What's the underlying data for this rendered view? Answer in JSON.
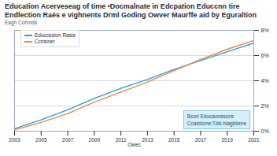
{
  "chart_data": {
    "type": "line",
    "title": "Education Acerveseag of time •Docmalnate in Edcpation Educcnn tire\nEndlection Raés e vighnents Drml Goding Owver Maurffe aid by Eguraltion",
    "subtitle": "Eagh Coñmds",
    "x_label": "Owec",
    "x": [
      2003,
      2005,
      2007,
      2009,
      2011,
      2013,
      2015,
      2017,
      2019,
      2021
    ],
    "series": [
      {
        "name": "Educcesion Rasie",
        "color": "#2a9fd0",
        "values": [
          0.2,
          0.9,
          1.7,
          2.6,
          3.4,
          4.1,
          4.9,
          5.6,
          6.3,
          7.0
        ]
      },
      {
        "name": "Ccrisiner",
        "color": "#e8894a",
        "values": [
          0.1,
          0.7,
          1.4,
          2.3,
          3.1,
          3.9,
          4.8,
          5.7,
          6.5,
          7.2
        ]
      }
    ],
    "xlim": [
      2003,
      2021
    ],
    "xticks": [
      2003,
      2005,
      2007,
      2009,
      2011,
      2013,
      2015,
      2017,
      2019,
      2021
    ],
    "ylim": [
      0,
      8
    ],
    "yticks": [
      {
        "value": 0,
        "label": "0%"
      },
      {
        "value": 2,
        "label": "2%"
      },
      {
        "value": 4,
        "label": "4%"
      },
      {
        "value": 6,
        "label": "6%"
      },
      {
        "value": 8,
        "label": "8%"
      }
    ],
    "grid": true,
    "legend": "top-left",
    "annotations": [
      "Bcorl Educaonssons",
      "Ccassione:Tdd-hlagbliene"
    ]
  }
}
